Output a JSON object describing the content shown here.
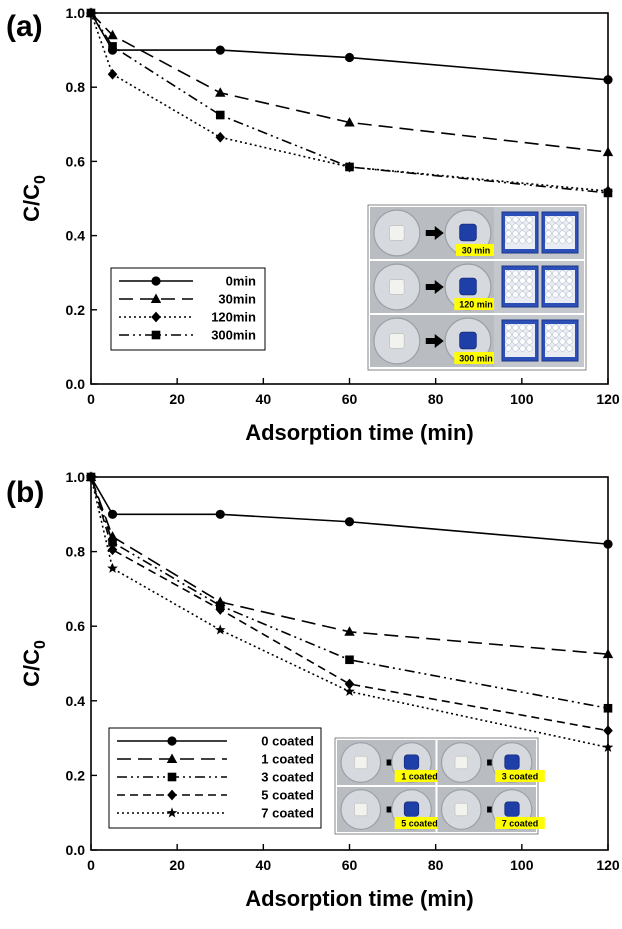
{
  "chart_data": [
    {
      "type": "line",
      "panel_label": "(a)",
      "xlabel": "Adsorption time (min)",
      "ylabel_main": "C/C",
      "ylabel_sub": "0",
      "xlim": [
        0,
        120
      ],
      "ylim": [
        0.0,
        1.0
      ],
      "xticks": [
        "0",
        "20",
        "40",
        "60",
        "80",
        "100",
        "120"
      ],
      "yticks": [
        "0.0",
        "0.2",
        "0.4",
        "0.6",
        "0.8",
        "1.0"
      ],
      "legend_position": "bottom-left",
      "series": [
        {
          "name": "0min",
          "marker": "circle",
          "dash": "solid",
          "x": [
            0,
            5,
            30,
            60,
            120
          ],
          "y": [
            1.0,
            0.9,
            0.9,
            0.88,
            0.82
          ]
        },
        {
          "name": "30min",
          "marker": "triangle",
          "dash": "long-dash",
          "x": [
            0,
            5,
            30,
            60,
            120
          ],
          "y": [
            1.0,
            0.94,
            0.785,
            0.705,
            0.625
          ]
        },
        {
          "name": "120min",
          "marker": "diamond",
          "dash": "dotted",
          "x": [
            0,
            5,
            30,
            60,
            120
          ],
          "y": [
            1.0,
            0.835,
            0.665,
            0.585,
            0.52
          ]
        },
        {
          "name": "300min",
          "marker": "square",
          "dash": "dash-dot-dot",
          "x": [
            0,
            5,
            30,
            60,
            120
          ],
          "y": [
            1.0,
            0.91,
            0.725,
            0.585,
            0.515
          ]
        }
      ],
      "inset_labels": [
        "30 min",
        "120 min",
        "300 min"
      ]
    },
    {
      "type": "line",
      "panel_label": "(b)",
      "xlabel": "Adsorption time (min)",
      "ylabel_main": "C/C",
      "ylabel_sub": "0",
      "xlim": [
        0,
        120
      ],
      "ylim": [
        0.0,
        1.0
      ],
      "xticks": [
        "0",
        "20",
        "40",
        "60",
        "80",
        "100",
        "120"
      ],
      "yticks": [
        "0.0",
        "0.2",
        "0.4",
        "0.6",
        "0.8",
        "1.0"
      ],
      "legend_position": "bottom-left",
      "series": [
        {
          "name": "0 coated",
          "marker": "circle",
          "dash": "solid",
          "x": [
            0,
            5,
            30,
            60,
            120
          ],
          "y": [
            1.0,
            0.9,
            0.9,
            0.88,
            0.82
          ]
        },
        {
          "name": "1 coated",
          "marker": "triangle",
          "dash": "long-dash",
          "x": [
            0,
            5,
            30,
            60,
            120
          ],
          "y": [
            1.0,
            0.84,
            0.665,
            0.585,
            0.525
          ]
        },
        {
          "name": "3 coated",
          "marker": "square",
          "dash": "dash-dot-dot",
          "x": [
            0,
            5,
            30,
            60,
            120
          ],
          "y": [
            1.0,
            0.825,
            0.655,
            0.51,
            0.38
          ]
        },
        {
          "name": "5 coated",
          "marker": "diamond",
          "dash": "short-dash",
          "x": [
            0,
            5,
            30,
            60,
            120
          ],
          "y": [
            1.0,
            0.805,
            0.645,
            0.445,
            0.32
          ]
        },
        {
          "name": "7 coated",
          "marker": "star",
          "dash": "dotted",
          "x": [
            0,
            5,
            30,
            60,
            120
          ],
          "y": [
            1.0,
            0.755,
            0.59,
            0.425,
            0.275
          ]
        }
      ],
      "inset_labels": [
        "1 coated",
        "3 coated",
        "5 coated",
        "7 coated"
      ]
    }
  ]
}
